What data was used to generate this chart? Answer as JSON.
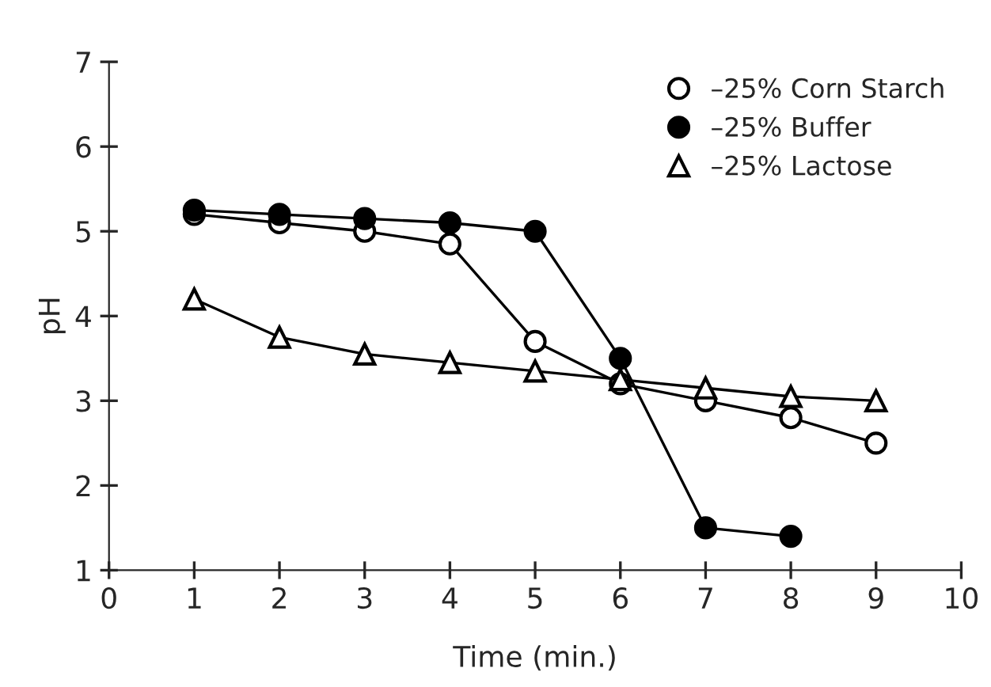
{
  "chart_data": {
    "type": "line",
    "xlabel": "Time (min.)",
    "ylabel": "pH",
    "xlim": [
      0,
      10
    ],
    "xticks": [
      0,
      1,
      2,
      3,
      4,
      5,
      6,
      7,
      8,
      9,
      10
    ],
    "ylim": [
      1,
      7
    ],
    "yticks": [
      1,
      2,
      3,
      4,
      5,
      6,
      7
    ],
    "grid": false,
    "legend": "top right",
    "series": [
      {
        "name": "–25% Corn Starch",
        "color": "#000000",
        "marker": "circle",
        "x": [
          1,
          2,
          3,
          4,
          5,
          6,
          7,
          8,
          9
        ],
        "values": [
          5.2,
          5.1,
          5.0,
          4.85,
          3.7,
          3.2,
          3.0,
          2.8,
          2.5
        ]
      },
      {
        "name": "–25% Buffer",
        "color": "#000000",
        "marker": "circle",
        "x": [
          1,
          2,
          3,
          4,
          5,
          6,
          7,
          8
        ],
        "values": [
          5.25,
          5.2,
          5.15,
          5.1,
          5.0,
          3.5,
          1.5,
          1.4
        ]
      },
      {
        "name": "–25% Lactose",
        "color": "#000000",
        "marker": "triangle",
        "x": [
          1,
          2,
          3,
          4,
          5,
          6,
          7,
          8,
          9
        ],
        "values": [
          4.2,
          3.75,
          3.55,
          3.45,
          3.35,
          3.25,
          3.15,
          3.05,
          3.0
        ]
      }
    ]
  }
}
